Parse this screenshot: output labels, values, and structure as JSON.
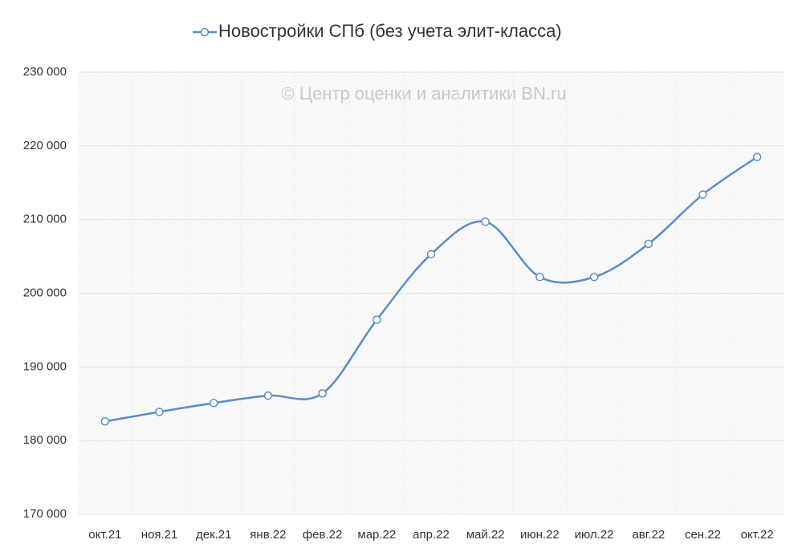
{
  "chart_data": {
    "type": "line",
    "annotation": "© Центр оценки и аналитики BN.ru",
    "categories": [
      "окт.21",
      "ноя.21",
      "дек.21",
      "янв.22",
      "фев.22",
      "мар.22",
      "апр.22",
      "май.22",
      "июн.22",
      "июл.22",
      "авг.22",
      "сен.22",
      "окт.22"
    ],
    "series": [
      {
        "name": "Новостройки СПб (без учета элит-класса)",
        "color": "#5b8ccb",
        "values": [
          182600,
          183900,
          185100,
          186100,
          186400,
          196400,
          205300,
          209700,
          202200,
          202200,
          206700,
          213400,
          218500
        ]
      }
    ],
    "ylim": [
      170000,
      230000
    ],
    "yticks": [
      {
        "value": 170000,
        "label": "170 000"
      },
      {
        "value": 180000,
        "label": "180 000"
      },
      {
        "value": 190000,
        "label": "190 000"
      },
      {
        "value": 200000,
        "label": "200 000"
      },
      {
        "value": 210000,
        "label": "210 000"
      },
      {
        "value": 220000,
        "label": "220 000"
      },
      {
        "value": 230000,
        "label": "230 000"
      }
    ],
    "grid": true,
    "smooth": true,
    "legend": "top"
  }
}
